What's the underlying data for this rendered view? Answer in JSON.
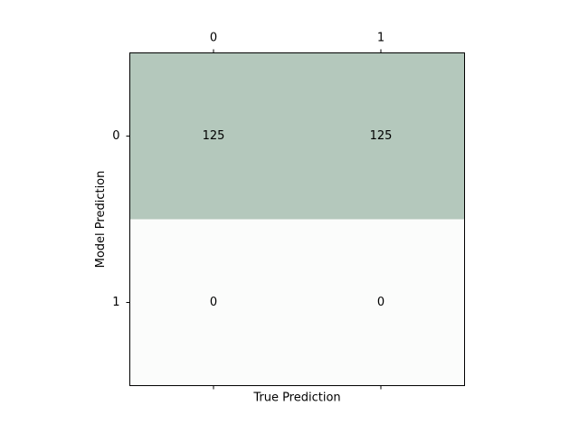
{
  "chart_data": {
    "type": "heatmap",
    "title": "",
    "xlabel": "True Prediction",
    "ylabel": "Model Prediction",
    "x_categories": [
      "0",
      "1"
    ],
    "y_categories": [
      "0",
      "1"
    ],
    "values": [
      [
        125,
        125
      ],
      [
        0,
        0
      ]
    ],
    "x_tick_position": "top",
    "grid": false,
    "colors": {
      "high": "#b4c8bc",
      "low": "#fbfcfb"
    }
  }
}
